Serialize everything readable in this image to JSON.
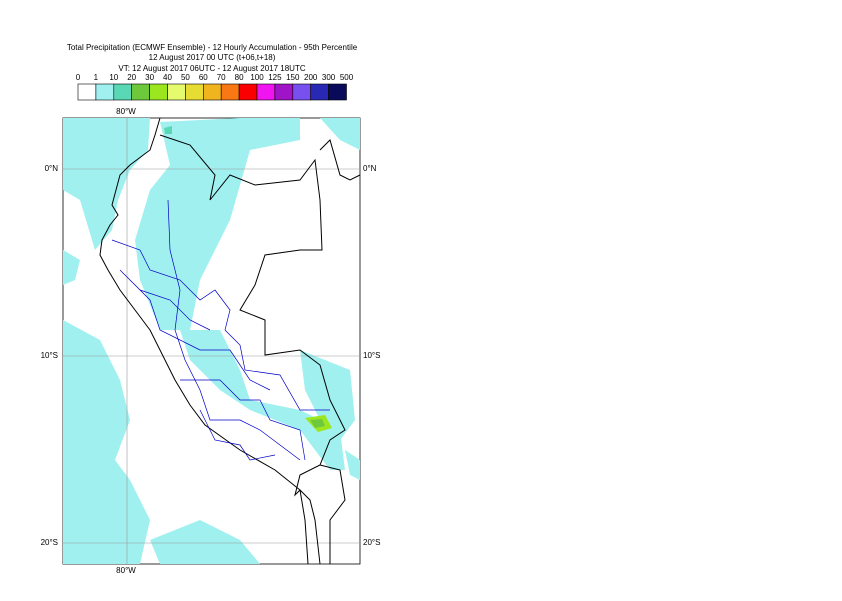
{
  "header": {
    "title_lines": [
      "Total Precipitation (ECMWF Ensemble) - 12 Hourly Accumulation - 95th Percentile",
      "12 August 2017 00 UTC (t+06,t+18)",
      "VT: 12 August 2017 06UTC - 12 August 2017 18UTC"
    ]
  },
  "legend": {
    "labels": [
      "0",
      "1",
      "10",
      "20",
      "30",
      "40",
      "50",
      "60",
      "70",
      "80",
      "100",
      "125",
      "150",
      "200",
      "300",
      "500"
    ],
    "colors": [
      "#ffffff",
      "#a0f0f0",
      "#5ad7b4",
      "#6ec83c",
      "#9be61e",
      "#e6fa6e",
      "#e6dc32",
      "#f0b41e",
      "#fa7814",
      "#fa0000",
      "#f014f0",
      "#a014c8",
      "#7850f0",
      "#2828b4",
      "#0a0a5a"
    ]
  },
  "map": {
    "lon_labels": [
      "80°W",
      "80°W"
    ],
    "lat_labels": [
      "0°N",
      "10°S",
      "20°S"
    ]
  }
}
